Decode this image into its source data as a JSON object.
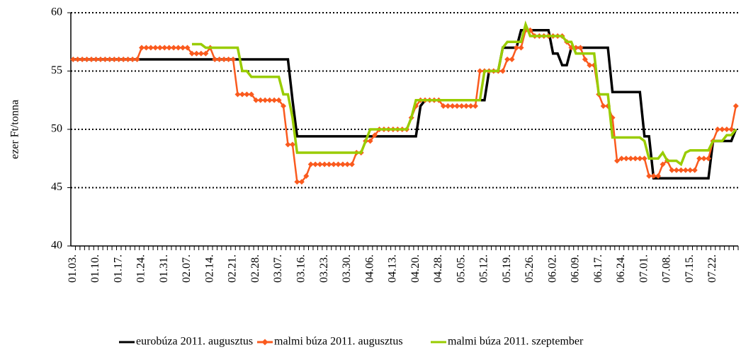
{
  "chart_data": {
    "type": "line",
    "y_label": "ezer Ft/tonna",
    "ylim": [
      40,
      60
    ],
    "yticks": [
      40,
      45,
      50,
      55,
      60
    ],
    "grid": true,
    "legend": "bottom",
    "categories": [
      "01.03.",
      null,
      null,
      null,
      null,
      "01.10.",
      null,
      null,
      null,
      null,
      "01.17.",
      null,
      null,
      null,
      null,
      "01.24.",
      null,
      null,
      null,
      null,
      "01.31.",
      null,
      null,
      null,
      null,
      "02.07.",
      null,
      null,
      null,
      null,
      "02.14.",
      null,
      null,
      null,
      null,
      "02.21.",
      null,
      null,
      null,
      null,
      "02.28.",
      null,
      null,
      null,
      null,
      "03.07.",
      null,
      null,
      null,
      null,
      "03.16.",
      null,
      null,
      null,
      null,
      "03.23.",
      null,
      null,
      null,
      null,
      "03.30.",
      null,
      null,
      null,
      null,
      "04.06.",
      null,
      null,
      null,
      null,
      "04.13.",
      null,
      null,
      null,
      null,
      "04.20.",
      null,
      null,
      null,
      null,
      "04.28.",
      null,
      null,
      null,
      null,
      "05.05.",
      null,
      null,
      null,
      null,
      "05.12.",
      null,
      null,
      null,
      null,
      "05.19.",
      null,
      null,
      null,
      null,
      "05.26.",
      null,
      null,
      null,
      null,
      "06.02.",
      null,
      null,
      null,
      null,
      "06.09.",
      null,
      null,
      null,
      null,
      "06.17.",
      null,
      null,
      null,
      null,
      "06.24.",
      null,
      null,
      null,
      null,
      "07.01.",
      null,
      null,
      null,
      null,
      "07.08.",
      null,
      null,
      null,
      null,
      "07.15.",
      null,
      null,
      null,
      null,
      "07.22.",
      null,
      null,
      null,
      null,
      null
    ],
    "series": [
      {
        "name": "eurobúza 2011. augusztus",
        "color": "#000000",
        "marker": "none",
        "values": [
          56,
          56,
          56,
          56,
          56,
          56,
          56,
          56,
          56,
          56,
          56,
          56,
          56,
          56,
          56,
          56,
          56,
          56,
          56,
          56,
          56,
          56,
          56,
          56,
          56,
          56,
          56,
          56,
          56,
          56,
          56,
          56,
          56,
          56,
          56,
          56,
          56,
          56,
          56,
          56,
          56,
          56,
          56,
          56,
          56,
          56,
          56,
          56,
          52.5,
          49.4,
          49.4,
          49.4,
          49.4,
          49.4,
          49.4,
          49.4,
          49.4,
          49.4,
          49.4,
          49.4,
          49.4,
          49.4,
          49.4,
          49.4,
          49.4,
          49.4,
          49.4,
          49.4,
          49.4,
          49.4,
          49.4,
          49.4,
          49.4,
          49.4,
          49.4,
          49.4,
          52,
          52.5,
          52.5,
          52.5,
          52.5,
          52.5,
          52.5,
          52.5,
          52.5,
          52.5,
          52.5,
          52.5,
          52.5,
          52.5,
          52.5,
          55,
          55,
          55,
          57,
          57,
          57,
          57,
          58.5,
          58.5,
          58.5,
          58.5,
          58.5,
          58.5,
          58.5,
          56.5,
          56.5,
          55.5,
          55.5,
          57,
          57,
          57,
          57,
          57,
          57,
          57,
          57,
          57,
          53.2,
          53.2,
          53.2,
          53.2,
          53.2,
          53.2,
          53.2,
          49.4,
          49.4,
          45.8,
          45.8,
          45.8,
          45.8,
          45.8,
          45.8,
          45.8,
          45.8,
          45.8,
          45.8,
          45.8,
          45.8,
          45.8,
          49,
          49,
          49,
          49,
          49,
          50
        ]
      },
      {
        "name": "malmi búza 2011. augusztus",
        "color": "#fa5a1e",
        "marker": "diamond",
        "values": [
          56,
          56,
          56,
          56,
          56,
          56,
          56,
          56,
          56,
          56,
          56,
          56,
          56,
          56,
          56,
          57,
          57,
          57,
          57,
          57,
          57,
          57,
          57,
          57,
          57,
          57,
          56.5,
          56.5,
          56.5,
          56.5,
          57,
          56,
          56,
          56,
          56,
          56,
          53,
          53,
          53,
          53,
          52.5,
          52.5,
          52.5,
          52.5,
          52.5,
          52.5,
          52,
          48.7,
          48.7,
          45.5,
          45.5,
          46,
          47,
          47,
          47,
          47,
          47,
          47,
          47,
          47,
          47,
          47,
          48,
          48,
          49,
          49,
          49.5,
          50,
          50,
          50,
          50,
          50,
          50,
          50,
          51,
          52,
          52.5,
          52.5,
          52.5,
          52.5,
          52.5,
          52,
          52,
          52,
          52,
          52,
          52,
          52,
          52,
          55,
          55,
          55,
          55,
          55,
          55,
          56,
          56,
          57,
          57,
          58.5,
          58.5,
          58,
          58,
          58,
          58,
          58,
          58,
          58,
          57.5,
          57,
          57,
          57,
          56,
          55.5,
          55.5,
          53,
          52,
          52,
          51,
          47.3,
          47.5,
          47.5,
          47.5,
          47.5,
          47.5,
          47.5,
          46,
          46,
          46,
          47,
          47.3,
          46.5,
          46.5,
          46.5,
          46.5,
          46.5,
          46.5,
          47.5,
          47.5,
          47.5,
          49,
          50,
          50,
          50,
          50,
          52
        ]
      },
      {
        "name": "malmi búza 2011. szeptember",
        "color": "#99cc00",
        "marker": "none",
        "values": [
          null,
          null,
          null,
          null,
          null,
          null,
          null,
          null,
          null,
          null,
          null,
          null,
          null,
          null,
          null,
          null,
          null,
          null,
          null,
          null,
          null,
          null,
          null,
          null,
          null,
          null,
          57.3,
          57.3,
          57.3,
          57,
          57,
          57,
          57,
          57,
          57,
          57,
          57,
          55,
          55,
          54.5,
          54.5,
          54.5,
          54.5,
          54.5,
          54.5,
          54.5,
          53,
          53,
          51,
          48,
          48,
          48,
          48,
          48,
          48,
          48,
          48,
          48,
          48,
          48,
          48,
          48,
          48,
          48,
          49,
          50,
          50,
          50,
          50,
          50,
          50,
          50,
          50,
          50,
          51,
          52.5,
          52.5,
          52.5,
          52.5,
          52.5,
          52.5,
          52.5,
          52.5,
          52.5,
          52.5,
          52.5,
          52.5,
          52.5,
          52.5,
          52.5,
          55,
          55,
          55,
          55,
          57,
          57.5,
          57.5,
          57.5,
          57.5,
          59,
          58,
          58,
          58,
          58,
          58,
          58,
          58,
          58,
          57.5,
          57.5,
          56.5,
          56.5,
          56.5,
          56.5,
          56.5,
          53,
          53,
          53,
          49.3,
          49.3,
          49.3,
          49.3,
          49.3,
          49.3,
          49.3,
          49,
          47.5,
          47.5,
          47.5,
          48,
          47.3,
          47.3,
          47.3,
          47,
          48,
          48.2,
          48.2,
          48.2,
          48.2,
          48.2,
          49,
          49,
          49,
          49.5,
          49.5,
          50
        ]
      }
    ]
  }
}
